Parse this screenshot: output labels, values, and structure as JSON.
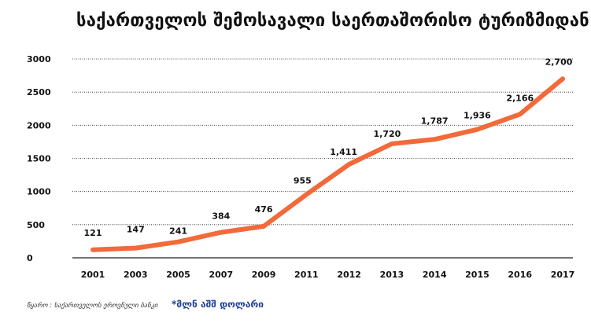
{
  "title": "საქართველოს შემოსავალი საერთაშორისო ტურიზმიდან",
  "source": "წყარო : საქართველოს ეროვნული ბანკი",
  "unit_note": "*მლნ აშშ დოლარი",
  "colors": {
    "line": "#f26a3a",
    "grid": "#222222",
    "text": "#111111",
    "unit": "#1f3f9a"
  },
  "chart_data": {
    "type": "line",
    "title": "საქართველოს შემოსავალი საერთაშორისო ტურიზმიდან",
    "categories": [
      "2001",
      "2003",
      "2005",
      "2007",
      "2009",
      "2011",
      "2012",
      "2013",
      "2014",
      "2015",
      "2016",
      "2017"
    ],
    "values": [
      121,
      147,
      241,
      384,
      476,
      955,
      1411,
      1720,
      1787,
      1936,
      2166,
      2700
    ],
    "data_labels": [
      "121",
      "147",
      "241",
      "384",
      "476",
      "955",
      "1,411",
      "1,720",
      "1,787",
      "1,936",
      "2,166",
      "2,700"
    ],
    "yticks": [
      "0",
      "500",
      "1000",
      "1500",
      "2000",
      "2500",
      "3000"
    ],
    "ylim": [
      0,
      3000
    ],
    "xlabel": "",
    "ylabel": "",
    "grid": true,
    "series_name": "მლნ აშშ დოლარი"
  }
}
